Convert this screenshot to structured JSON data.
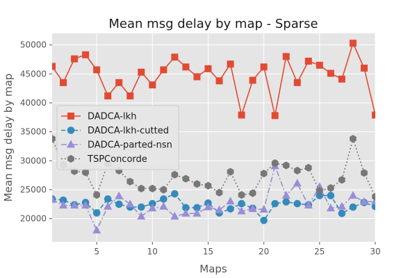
{
  "chart_data": {
    "type": "line",
    "title": "Mean msg delay by map - Sparse",
    "xlabel": "Maps",
    "ylabel": "Mean msg delay by map",
    "xlim": [
      1,
      30
    ],
    "ylim": [
      16000,
      52000
    ],
    "x_ticks": [
      5,
      10,
      15,
      20,
      25,
      30
    ],
    "y_ticks": [
      20000,
      25000,
      30000,
      35000,
      40000,
      45000,
      50000
    ],
    "grid": true,
    "legend_position": "center-left",
    "x": [
      1,
      2,
      3,
      4,
      5,
      6,
      7,
      8,
      9,
      10,
      11,
      12,
      13,
      14,
      15,
      16,
      17,
      18,
      19,
      20,
      21,
      22,
      23,
      24,
      25,
      26,
      27,
      28,
      29,
      30
    ],
    "series": [
      {
        "name": "DADCA-lkh",
        "color": "#e24a33",
        "marker": "square",
        "linestyle": "solid",
        "values": [
          46300,
          43500,
          47600,
          48300,
          45700,
          41200,
          43500,
          41200,
          45300,
          43100,
          45700,
          47900,
          46200,
          44500,
          45900,
          43800,
          46700,
          37900,
          43900,
          46200,
          37800,
          48000,
          43500,
          47200,
          46500,
          45100,
          44100,
          50300,
          46000,
          37900
        ]
      },
      {
        "name": "DADCA-lkh-cutted",
        "color": "#348abd",
        "marker": "circle",
        "linestyle": "dashed",
        "values": [
          23400,
          23200,
          22400,
          22800,
          21000,
          23400,
          22500,
          22000,
          22000,
          22600,
          23400,
          24300,
          21900,
          21900,
          22700,
          21000,
          21700,
          22600,
          21800,
          19700,
          22600,
          22900,
          22600,
          22400,
          24000,
          24000,
          20900,
          22000,
          22800,
          22100
        ]
      },
      {
        "name": "DADCA-parted-nsn",
        "color": "#988ed5",
        "marker": "triangle",
        "linestyle": "dashdot",
        "values": [
          23300,
          22300,
          22300,
          22300,
          18000,
          22100,
          23900,
          22500,
          20400,
          21800,
          22100,
          20400,
          20900,
          20900,
          22000,
          21500,
          23000,
          21300,
          21700,
          21600,
          29100,
          24000,
          26100,
          22300,
          25500,
          21800,
          22100,
          24000,
          22900,
          23000
        ]
      },
      {
        "name": "TSPConcorde",
        "color": "#777777",
        "marker": "hexagon",
        "linestyle": "dotted",
        "values": [
          33800,
          29300,
          28200,
          28000,
          24100,
          29500,
          28300,
          26400,
          25200,
          25200,
          25000,
          27600,
          26900,
          26000,
          25700,
          24500,
          28100,
          24100,
          24400,
          27800,
          29600,
          29200,
          28300,
          28800,
          24800,
          25300,
          26700,
          33800,
          27900,
          23800
        ]
      }
    ]
  }
}
